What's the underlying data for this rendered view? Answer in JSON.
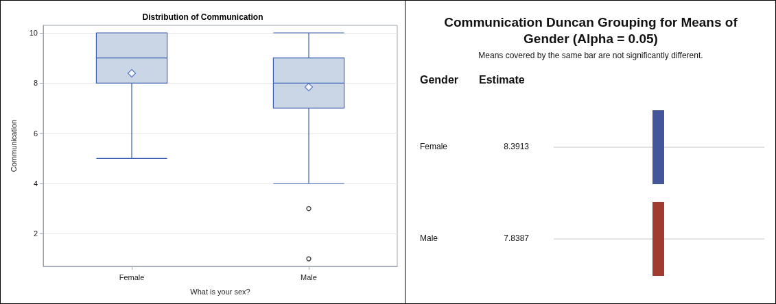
{
  "chart_data": [
    {
      "type": "box",
      "title": "Distribution of Communication",
      "xlabel": "What is your sex?",
      "ylabel": "Communication",
      "categories": [
        "Female",
        "Male"
      ],
      "color": "#cad5e6",
      "boxes": [
        {
          "low": 5,
          "q1": 8,
          "median": 9,
          "q3": 10,
          "high": 10,
          "mean": 8.39
        },
        {
          "low": 4,
          "q1": 7,
          "median": 8,
          "q3": 9,
          "high": 10,
          "mean": 7.84,
          "outliers": [
            3,
            1
          ]
        }
      ],
      "ylim": [
        0.7,
        10.3
      ],
      "yticks": [
        2,
        4,
        6,
        8,
        10
      ],
      "grid": "y"
    },
    {
      "type": "other",
      "title": "Communication Duncan Grouping for Means of Gender (Alpha = 0.05)",
      "subtitle": "Means covered by the same bar are not significantly different.",
      "annotations": [
        "Gender",
        "Estimate"
      ],
      "categories": [
        "Female",
        "Male"
      ],
      "values": [
        8.3913,
        7.8387
      ],
      "colors": [
        "#44559a",
        "#a23b2f"
      ],
      "data_labels": true
    }
  ]
}
